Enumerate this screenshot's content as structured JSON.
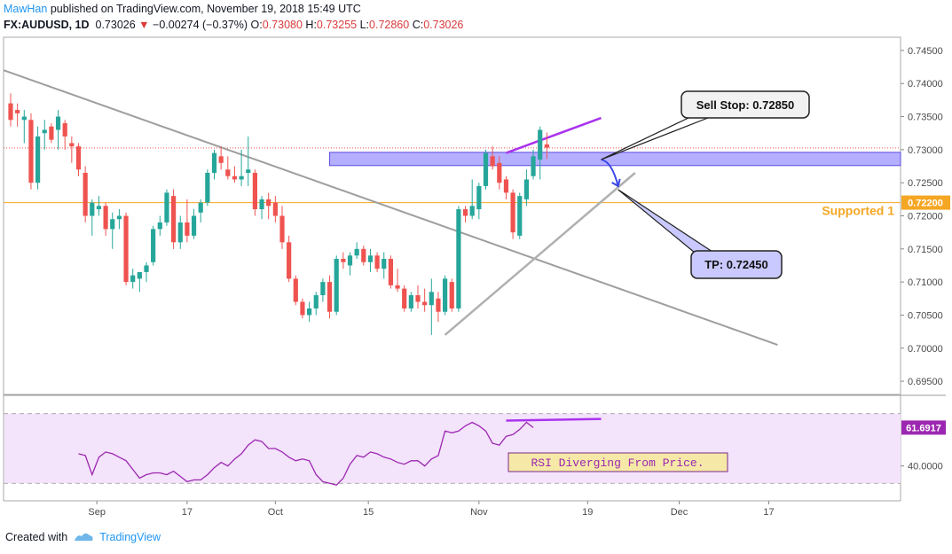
{
  "header": {
    "author": "MawHan",
    "published": "published on TradingView.com, November 19, 2018 15:49 UTC",
    "symbol": "FX:AUDUSD, 1D",
    "last": "0.73026",
    "change": "−0.00274 (−0.37%)",
    "o_label": "O:",
    "o": "0.73080",
    "h_label": "H:",
    "h": "0.73255",
    "l_label": "L:",
    "l": "0.72860",
    "c_label": "C:",
    "c": "0.73026"
  },
  "footer": {
    "created_with": "Created with",
    "brand": "TradingView"
  },
  "colors": {
    "up": "#26a69a",
    "down": "#ef5350",
    "zone": "#9c94ff",
    "support": "#f5a623",
    "rsi": "#9c27b0",
    "rsi_bg": "#f3e3fb",
    "purple_line": "#aa33ee"
  },
  "chart_data": [
    {
      "type": "candlestick",
      "title": "FX:AUDUSD, 1D",
      "x_ticks": [
        {
          "label": "Sep",
          "index": 12.7
        },
        {
          "label": "17",
          "index": 26
        },
        {
          "label": "Oct",
          "index": 39
        },
        {
          "label": "15",
          "index": 52.7
        },
        {
          "label": "Nov",
          "index": 69
        },
        {
          "label": "19",
          "index": 85
        },
        {
          "label": "Dec",
          "index": 98.5
        },
        {
          "label": "17",
          "index": 111.7
        }
      ],
      "ylim": [
        0.693,
        0.747
      ],
      "y_ticks": [
        "0.74500",
        "0.74000",
        "0.73500",
        "0.73000",
        "0.72500",
        "0.72000",
        "0.71500",
        "0.71000",
        "0.70500",
        "0.70000",
        "0.69500"
      ],
      "candles": [
        [
          0.737,
          0.7385,
          0.7335,
          0.7345
        ],
        [
          0.736,
          0.737,
          0.7335,
          0.7355
        ],
        [
          0.7345,
          0.736,
          0.731,
          0.735
        ],
        [
          0.7345,
          0.7355,
          0.724,
          0.725
        ],
        [
          0.725,
          0.7335,
          0.724,
          0.732
        ],
        [
          0.7325,
          0.7345,
          0.73,
          0.733
        ],
        [
          0.7335,
          0.734,
          0.731,
          0.7315
        ],
        [
          0.733,
          0.736,
          0.73,
          0.735
        ],
        [
          0.734,
          0.7345,
          0.73,
          0.732
        ],
        [
          0.731,
          0.732,
          0.728,
          0.7305
        ],
        [
          0.7305,
          0.731,
          0.726,
          0.727
        ],
        [
          0.7265,
          0.7275,
          0.719,
          0.72
        ],
        [
          0.72,
          0.7225,
          0.717,
          0.722
        ],
        [
          0.721,
          0.723,
          0.72,
          0.7215
        ],
        [
          0.7215,
          0.722,
          0.717,
          0.718
        ],
        [
          0.718,
          0.7205,
          0.715,
          0.7195
        ],
        [
          0.7195,
          0.721,
          0.718,
          0.72
        ],
        [
          0.72,
          0.7205,
          0.7095,
          0.71
        ],
        [
          0.71,
          0.712,
          0.709,
          0.711
        ],
        [
          0.7105,
          0.7115,
          0.7085,
          0.7115
        ],
        [
          0.7115,
          0.713,
          0.71,
          0.7125
        ],
        [
          0.713,
          0.7185,
          0.7125,
          0.718
        ],
        [
          0.718,
          0.72,
          0.717,
          0.719
        ],
        [
          0.719,
          0.724,
          0.7185,
          0.7235
        ],
        [
          0.723,
          0.724,
          0.715,
          0.716
        ],
        [
          0.716,
          0.72,
          0.715,
          0.719
        ],
        [
          0.719,
          0.7225,
          0.716,
          0.717
        ],
        [
          0.717,
          0.721,
          0.7165,
          0.72
        ],
        [
          0.7205,
          0.7225,
          0.719,
          0.722
        ],
        [
          0.722,
          0.727,
          0.7215,
          0.7265
        ],
        [
          0.7265,
          0.73,
          0.7255,
          0.7295
        ],
        [
          0.729,
          0.7305,
          0.727,
          0.728
        ],
        [
          0.727,
          0.729,
          0.7255,
          0.726
        ],
        [
          0.726,
          0.7275,
          0.725,
          0.7255
        ],
        [
          0.7255,
          0.73,
          0.7245,
          0.726
        ],
        [
          0.7265,
          0.732,
          0.7245,
          0.727
        ],
        [
          0.7265,
          0.727,
          0.72,
          0.721
        ],
        [
          0.721,
          0.723,
          0.7195,
          0.7225
        ],
        [
          0.7225,
          0.7235,
          0.7195,
          0.7215
        ],
        [
          0.722,
          0.723,
          0.719,
          0.72
        ],
        [
          0.72,
          0.7215,
          0.715,
          0.716
        ],
        [
          0.716,
          0.717,
          0.71,
          0.7105
        ],
        [
          0.7105,
          0.711,
          0.7065,
          0.707
        ],
        [
          0.707,
          0.7075,
          0.7045,
          0.705
        ],
        [
          0.705,
          0.707,
          0.704,
          0.706
        ],
        [
          0.706,
          0.7085,
          0.705,
          0.708
        ],
        [
          0.708,
          0.7105,
          0.707,
          0.71
        ],
        [
          0.71,
          0.711,
          0.7045,
          0.7055
        ],
        [
          0.7055,
          0.714,
          0.705,
          0.7135
        ],
        [
          0.7135,
          0.7145,
          0.712,
          0.713
        ],
        [
          0.7125,
          0.7145,
          0.711,
          0.714
        ],
        [
          0.714,
          0.716,
          0.7135,
          0.715
        ],
        [
          0.715,
          0.7155,
          0.7125,
          0.713
        ],
        [
          0.713,
          0.715,
          0.7115,
          0.714
        ],
        [
          0.714,
          0.7145,
          0.7115,
          0.712
        ],
        [
          0.712,
          0.7145,
          0.7105,
          0.7135
        ],
        [
          0.7135,
          0.714,
          0.709,
          0.7095
        ],
        [
          0.7095,
          0.712,
          0.7085,
          0.709
        ],
        [
          0.709,
          0.7095,
          0.7055,
          0.706
        ],
        [
          0.706,
          0.7085,
          0.7055,
          0.708
        ],
        [
          0.708,
          0.7095,
          0.706,
          0.707
        ],
        [
          0.707,
          0.709,
          0.7055,
          0.7065
        ],
        [
          0.7065,
          0.7105,
          0.702,
          0.7085
        ],
        [
          0.7075,
          0.7085,
          0.704,
          0.7055
        ],
        [
          0.7055,
          0.711,
          0.705,
          0.7105
        ],
        [
          0.71,
          0.7105,
          0.7055,
          0.706
        ],
        [
          0.706,
          0.7215,
          0.7055,
          0.721
        ],
        [
          0.721,
          0.7215,
          0.719,
          0.72
        ],
        [
          0.72,
          0.7255,
          0.7195,
          0.7215
        ],
        [
          0.721,
          0.725,
          0.7195,
          0.7245
        ],
        [
          0.7245,
          0.73,
          0.724,
          0.7295
        ],
        [
          0.729,
          0.7305,
          0.727,
          0.7275
        ],
        [
          0.728,
          0.729,
          0.724,
          0.725
        ],
        [
          0.7255,
          0.726,
          0.7225,
          0.7235
        ],
        [
          0.7235,
          0.724,
          0.7165,
          0.7175
        ],
        [
          0.717,
          0.7235,
          0.7165,
          0.723
        ],
        [
          0.7225,
          0.727,
          0.7215,
          0.7255
        ],
        [
          0.726,
          0.73,
          0.7255,
          0.729
        ],
        [
          0.7285,
          0.7335,
          0.7255,
          0.733
        ],
        [
          0.7308,
          0.7326,
          0.7286,
          0.7303
        ]
      ],
      "price_line": 0.73026,
      "support": {
        "label": "Supported 1",
        "value": 0.722,
        "badge": "0.72200"
      },
      "resistance_zone": {
        "from": 0.7276,
        "to": 0.7296,
        "start_index": 47
      },
      "trendline_down": {
        "from": [
          -1,
          0.742
        ],
        "to": [
          113,
          0.7005
        ]
      },
      "trendline_up": {
        "from": [
          64,
          0.702
        ],
        "to": [
          92,
          0.7265
        ]
      },
      "divergence_price_line": {
        "from": [
          73,
          0.7295
        ],
        "to": [
          87,
          0.7348
        ]
      },
      "sell_stop_arrow": {
        "from": [
          87,
          0.7285
        ],
        "to": [
          89.5,
          0.7245
        ]
      },
      "annotations": [
        {
          "label": "Sell Stop: 0.72850",
          "anchor_index": 87,
          "anchor_value": 0.7285
        },
        {
          "label": "TP: 0.72450",
          "anchor_index": 89.5,
          "anchor_value": 0.7245
        }
      ]
    },
    {
      "type": "line",
      "title": "RSI",
      "ylim": [
        20,
        80
      ],
      "y_ticks": [
        "40.0000"
      ],
      "last_badge": "61.6917",
      "band_upper": 70,
      "band_lower": 30,
      "values": [
        47,
        46,
        35,
        45,
        48,
        47,
        45,
        43,
        38,
        33,
        35,
        36,
        36,
        35,
        37,
        34,
        31,
        32,
        32,
        35,
        39,
        42,
        40,
        44,
        47,
        52,
        55,
        54,
        50,
        50,
        48,
        45,
        43,
        44,
        43,
        35,
        31,
        30,
        29,
        33,
        41,
        46,
        45,
        48,
        47,
        45,
        44,
        42,
        41,
        43,
        43,
        40,
        44,
        46,
        60,
        59,
        60,
        63,
        65,
        63,
        60,
        53,
        52,
        57,
        58,
        61,
        65,
        62
      ],
      "values_index_offset": 0,
      "rsi_indices_note": "",
      "divergence_line": {
        "from": [
          73,
          66
        ],
        "to": [
          87,
          67
        ]
      },
      "label": "RSI Diverging From Price."
    }
  ]
}
